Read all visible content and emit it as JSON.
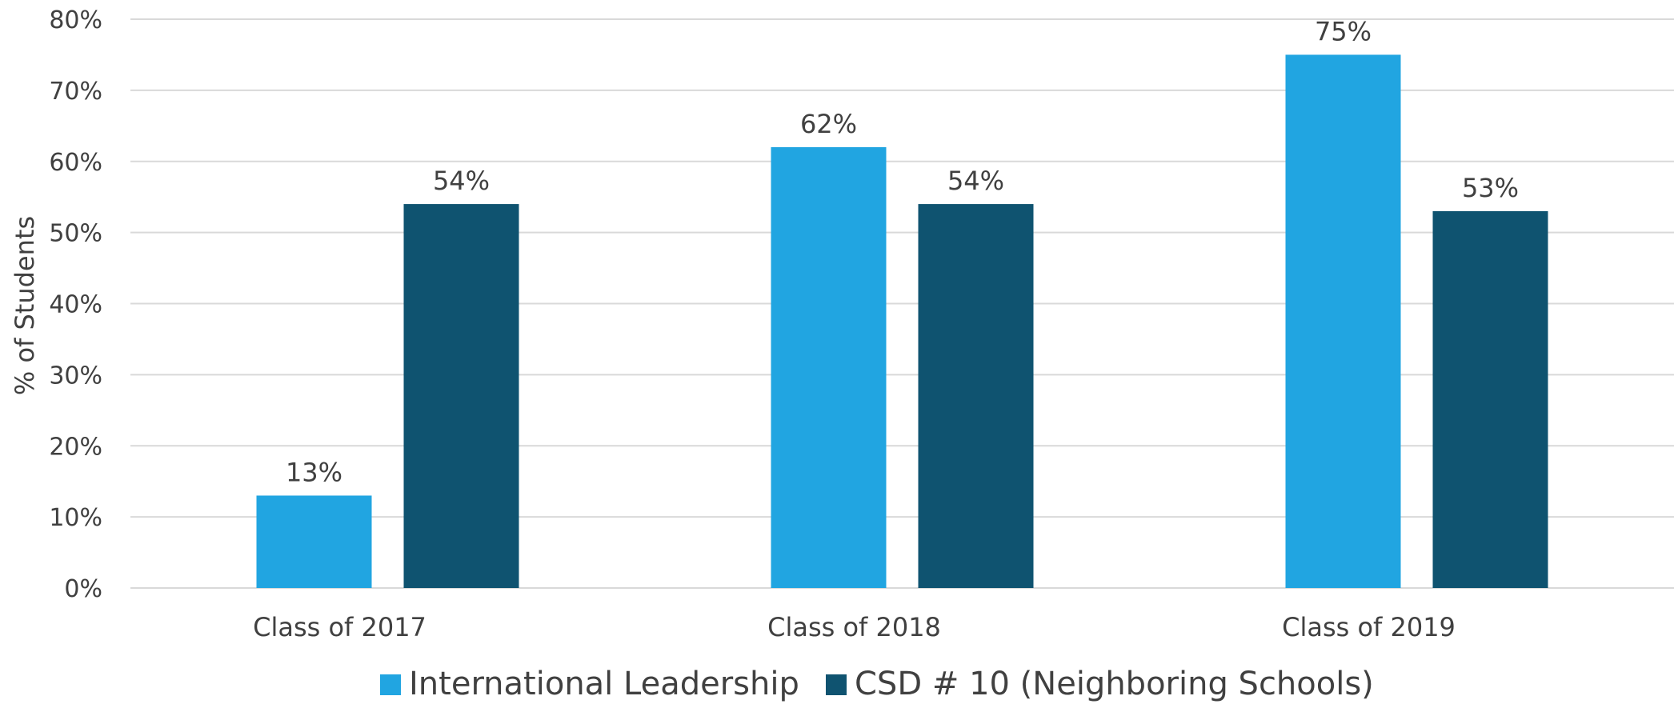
{
  "chart_data": {
    "type": "bar",
    "categories": [
      "Class of 2017",
      "Class of 2018",
      "Class of 2019"
    ],
    "series": [
      {
        "name": "International Leadership",
        "color": "#21a5e1",
        "values": [
          13,
          62,
          75
        ]
      },
      {
        "name": "CSD # 10 (Neighboring Schools)",
        "color": "#0f5370",
        "values": [
          54,
          54,
          53
        ]
      }
    ],
    "data_labels": [
      [
        "13%",
        "62%",
        "75%"
      ],
      [
        "54%",
        "54%",
        "53%"
      ]
    ],
    "ylabel": "% of Students",
    "ylim": [
      0,
      80
    ],
    "yticks": [
      0,
      10,
      20,
      30,
      40,
      50,
      60,
      70,
      80
    ],
    "ytick_labels": [
      "0%",
      "10%",
      "20%",
      "30%",
      "40%",
      "50%",
      "60%",
      "70%",
      "80%"
    ],
    "grid": true,
    "legend_position": "bottom"
  }
}
